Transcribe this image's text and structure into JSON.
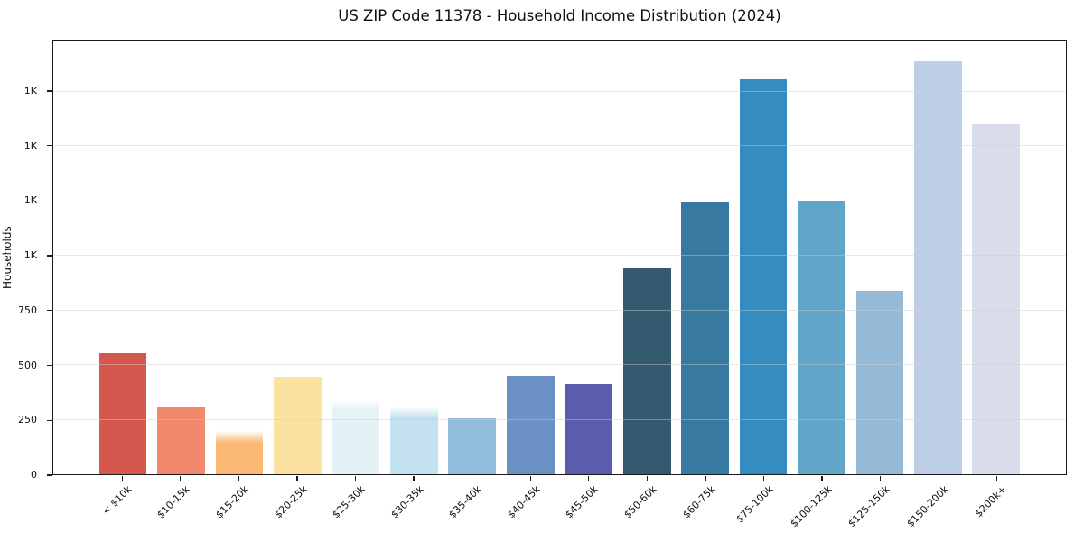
{
  "chart_data": {
    "type": "bar",
    "title": "US ZIP Code 11378 - Household Income Distribution (2024)",
    "xlabel": "",
    "ylabel": "Households",
    "ylim": [
      0,
      1985
    ],
    "grid": true,
    "grid_values": [
      250,
      500,
      750,
      1000,
      1250,
      1500,
      1750
    ],
    "gridlines_on_top_of_bars": true,
    "legend": false,
    "y_ticks": [
      {
        "value": 0,
        "label": "0"
      },
      {
        "value": 250,
        "label": "250"
      },
      {
        "value": 500,
        "label": "500"
      },
      {
        "value": 750,
        "label": "750"
      },
      {
        "value": 1000,
        "label": "1K"
      },
      {
        "value": 1250,
        "label": "1K"
      },
      {
        "value": 1500,
        "label": "1K"
      },
      {
        "value": 1750,
        "label": "1K"
      }
    ],
    "categories": [
      "< $10k",
      "$10-15k",
      "$15-20k",
      "$20-25k",
      "$25-30k",
      "$30-35k",
      "$35-40k",
      "$40-45k",
      "$45-50k",
      "$50-60k",
      "$60-75k",
      "$75-100k",
      "$100-125k",
      "$125-150k",
      "$150-200k",
      "$200k+"
    ],
    "values": [
      555,
      310,
      200,
      445,
      345,
      310,
      255,
      450,
      415,
      945,
      1245,
      1810,
      1255,
      840,
      1890,
      1605
    ],
    "bar_colors": [
      "#d5584f",
      "#f1886b",
      "#fbb977",
      "#fce2a1",
      "#e4f1f5",
      "#c3e1ef",
      "#92bdda",
      "#6b91c5",
      "#5b5cad",
      "#35596e",
      "#38799f",
      "#348cc0",
      "#61a5c9",
      "#95bad8",
      "#becee6",
      "#d9dcea"
    ],
    "soft_top_bars": [
      2,
      4,
      5
    ]
  },
  "colors": {
    "background": "#ffffff",
    "spine": "#1a1a1a",
    "gridline": "#ececec",
    "text": "#111111"
  }
}
